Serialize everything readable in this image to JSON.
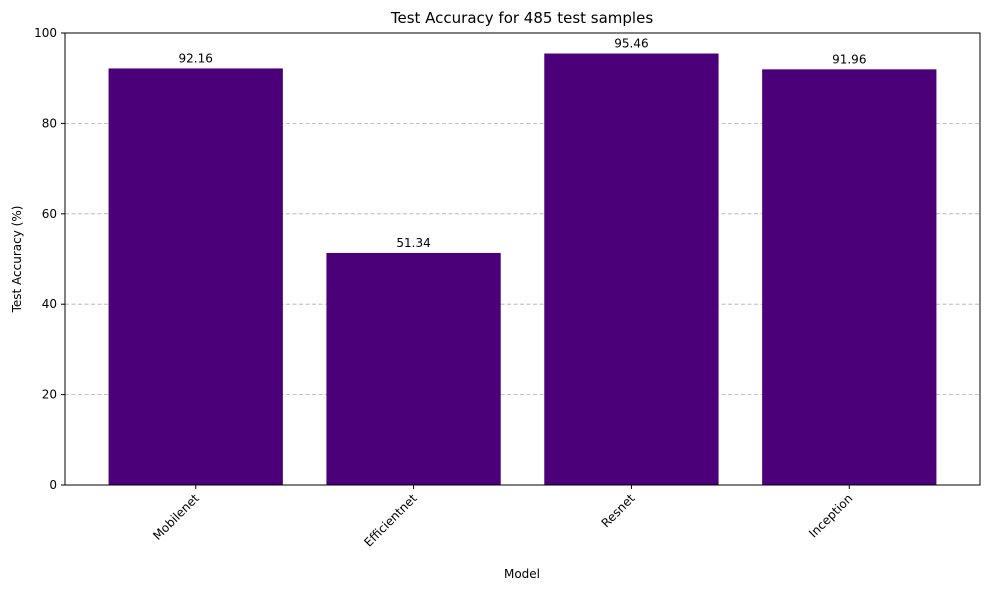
{
  "chart_data": {
    "type": "bar",
    "title": "Test Accuracy for 485 test samples",
    "xlabel": "Model",
    "ylabel": "Test Accuracy (%)",
    "categories": [
      "Mobilenet",
      "Efficientnet",
      "Resnet",
      "Inception"
    ],
    "values": [
      92.16,
      51.34,
      95.46,
      91.96
    ],
    "value_labels": [
      "92.16",
      "51.34",
      "95.46",
      "91.96"
    ],
    "ylim": [
      0,
      100
    ],
    "yticks": [
      0,
      20,
      40,
      60,
      80,
      100
    ],
    "ytick_labels": [
      "0",
      "20",
      "40",
      "60",
      "80",
      "100"
    ],
    "grid": "y-axis dashed",
    "legend": "none",
    "colors": {
      "bar": "#4b0079",
      "grid": "#b0b0b0",
      "axis": "#000000"
    }
  }
}
